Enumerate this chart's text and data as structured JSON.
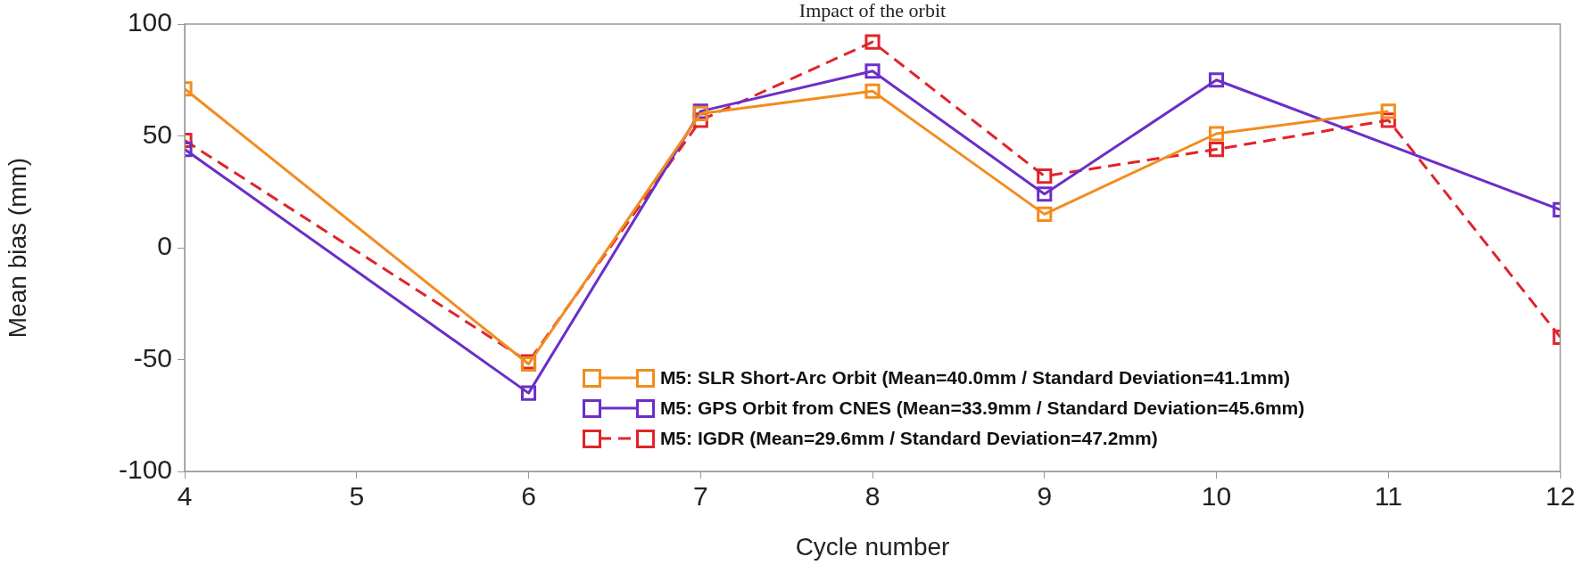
{
  "chart_data": {
    "type": "line",
    "title": "Impact of the orbit",
    "xlabel": "Cycle number",
    "ylabel": "Mean bias (mm)",
    "x": [
      4,
      6,
      7,
      8,
      9,
      10,
      11,
      12
    ],
    "series": [
      {
        "name": "M5: SLR Short-Arc Orbit (Mean=40.0mm / Standard Deviation=41.1mm)",
        "color": "#f28c1e",
        "line_style": "solid",
        "values": [
          71,
          -52,
          60,
          70,
          15,
          51,
          61,
          null
        ]
      },
      {
        "name": "M5: GPS Orbit from CNES (Mean=33.9mm / Standard Deviation=45.6mm)",
        "color": "#6a2fc8",
        "line_style": "solid",
        "values": [
          44,
          -65,
          61,
          79,
          24,
          75,
          null,
          17
        ]
      },
      {
        "name": "M5: IGDR (Mean=29.6mm / Standard Deviation=47.2mm)",
        "color": "#e0242a",
        "line_style": "dashed",
        "values": [
          48,
          -51,
          57,
          92,
          32,
          44,
          57,
          -40
        ]
      }
    ],
    "xlim": [
      4,
      12
    ],
    "xticks": [
      4,
      5,
      6,
      7,
      8,
      9,
      10,
      11,
      12
    ],
    "ylim": [
      -100,
      100
    ],
    "yticks": [
      -100,
      -50,
      0,
      50,
      100
    ],
    "grid": false,
    "legend": "bottom",
    "marker": "square"
  }
}
